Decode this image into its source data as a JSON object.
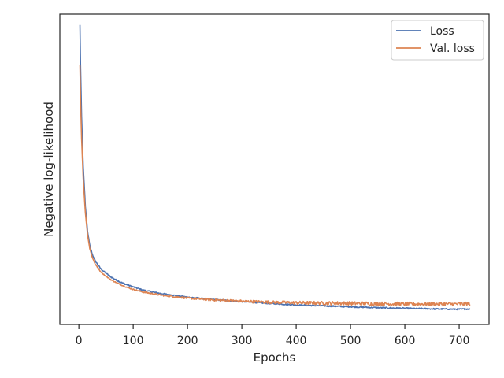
{
  "chart_data": {
    "type": "line",
    "title": "",
    "xlabel": "Epochs",
    "ylabel": "Negative log-likelihood",
    "xlim": [
      -35,
      755
    ],
    "ylim": [
      0,
      1
    ],
    "x_ticks": [
      0,
      100,
      200,
      300,
      400,
      500,
      600,
      700
    ],
    "y_ticks_labeled": false,
    "grid": false,
    "legend": {
      "placement": "top-right"
    },
    "series": [
      {
        "name": "Loss",
        "color": "#4c72b0",
        "x": [
          2,
          3,
          5,
          8,
          12,
          16,
          20,
          25,
          30,
          40,
          50,
          60,
          70,
          80,
          90,
          100,
          120,
          150,
          200,
          250,
          300,
          350,
          400,
          450,
          500,
          550,
          600,
          650,
          700,
          720
        ],
        "y": [
          0.965,
          0.84,
          0.67,
          0.51,
          0.38,
          0.3,
          0.255,
          0.225,
          0.205,
          0.18,
          0.165,
          0.152,
          0.142,
          0.134,
          0.127,
          0.121,
          0.11,
          0.1,
          0.088,
          0.08,
          0.074,
          0.068,
          0.063,
          0.06,
          0.057,
          0.054,
          0.052,
          0.05,
          0.049,
          0.05
        ],
        "noise": 0.002
      },
      {
        "name": "Val. loss",
        "color": "#dd8452",
        "x": [
          2,
          3,
          5,
          8,
          12,
          16,
          20,
          25,
          30,
          40,
          50,
          60,
          70,
          80,
          90,
          100,
          120,
          150,
          200,
          250,
          300,
          350,
          400,
          450,
          500,
          550,
          600,
          650,
          700,
          720
        ],
        "y": [
          0.835,
          0.73,
          0.6,
          0.47,
          0.36,
          0.29,
          0.245,
          0.215,
          0.195,
          0.17,
          0.155,
          0.143,
          0.134,
          0.126,
          0.119,
          0.113,
          0.104,
          0.095,
          0.085,
          0.079,
          0.075,
          0.072,
          0.07,
          0.069,
          0.068,
          0.067,
          0.066,
          0.066,
          0.066,
          0.067
        ],
        "noise": 0.006
      }
    ]
  }
}
